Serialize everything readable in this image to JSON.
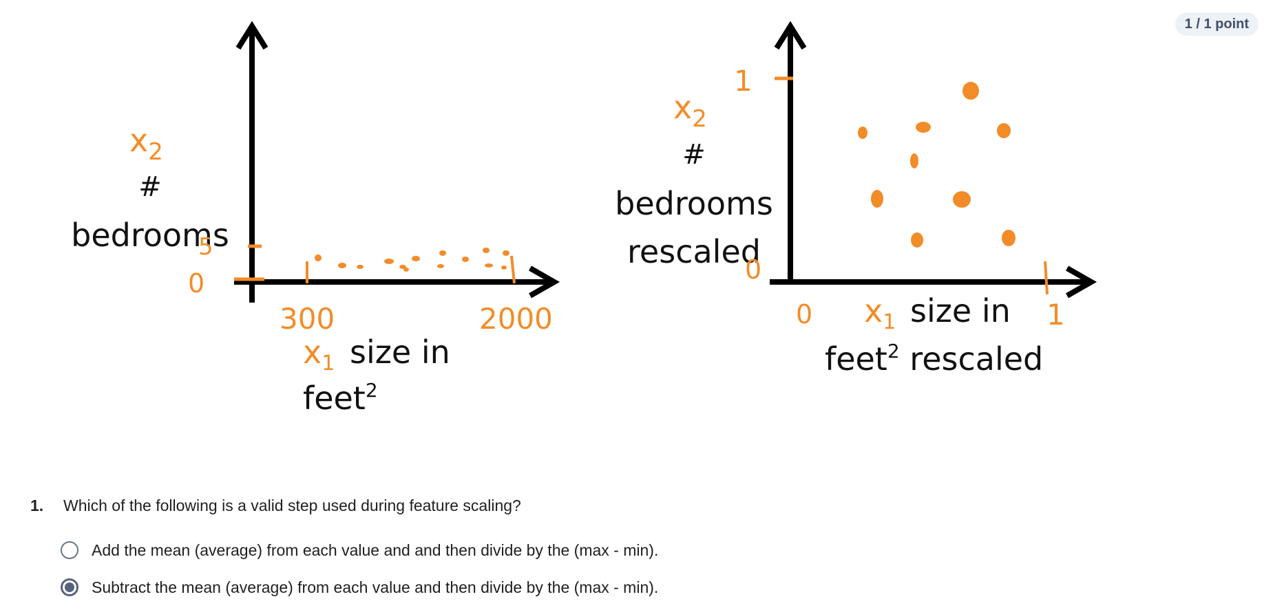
{
  "score": {
    "label": "1 / 1 point"
  },
  "figure": {
    "left": {
      "y_var": "x",
      "y_sub": "2",
      "y_label_line1": "#",
      "y_label_line2": "bedrooms",
      "y_tick_top": "5",
      "y_tick_bottom": "0",
      "x_tick_min": "300",
      "x_tick_max": "2000",
      "x_var": "x",
      "x_sub": "1",
      "x_label_line1": "size in",
      "x_label_line2_base": "feet",
      "x_label_line2_sup": "2"
    },
    "right": {
      "y_var": "x",
      "y_sub": "2",
      "y_label_line1": "#",
      "y_label_line2": "bedrooms",
      "y_label_line3": "rescaled",
      "y_tick_top": "1",
      "y_tick_bottom": "0",
      "x_tick_min": "0",
      "x_tick_max": "1",
      "x_var": "x",
      "x_sub": "1",
      "x_label_line1": "size in",
      "x_label_line2_base": "feet",
      "x_label_line2_sup": "2",
      "x_label_line2_rest": " rescaled"
    },
    "accent_color": "#f28c28"
  },
  "question": {
    "number": "1.",
    "text": "Which of the following is a valid step used during feature scaling?",
    "options": [
      {
        "label": "Add the mean (average) from each value and and then divide by the (max - min).",
        "selected": false
      },
      {
        "label": "Subtract the mean (average) from each value and then divide by the (max - min).",
        "selected": true
      }
    ]
  }
}
